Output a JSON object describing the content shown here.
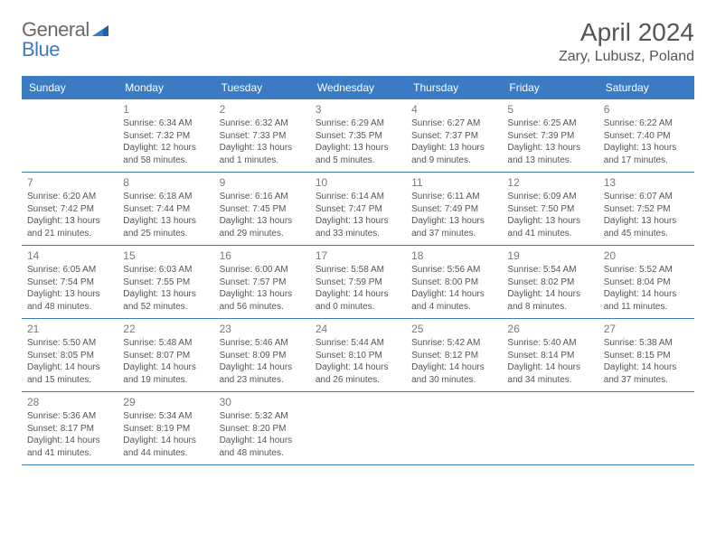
{
  "logo": {
    "general": "General",
    "blue": "Blue"
  },
  "title": "April 2024",
  "location": "Zary, Lubusz, Poland",
  "colors": {
    "header_bg": "#3a7bc4",
    "row_divider": "#3a7bc4",
    "text": "#555555",
    "daynum": "#7a7a7a",
    "logo_gray": "#6b6b6b",
    "logo_blue": "#3a7bc4"
  },
  "day_names": [
    "Sunday",
    "Monday",
    "Tuesday",
    "Wednesday",
    "Thursday",
    "Friday",
    "Saturday"
  ],
  "weeks": [
    [
      {
        "num": "",
        "sunrise": "",
        "sunset": "",
        "daylight": ""
      },
      {
        "num": "1",
        "sunrise": "Sunrise: 6:34 AM",
        "sunset": "Sunset: 7:32 PM",
        "daylight": "Daylight: 12 hours and 58 minutes."
      },
      {
        "num": "2",
        "sunrise": "Sunrise: 6:32 AM",
        "sunset": "Sunset: 7:33 PM",
        "daylight": "Daylight: 13 hours and 1 minutes."
      },
      {
        "num": "3",
        "sunrise": "Sunrise: 6:29 AM",
        "sunset": "Sunset: 7:35 PM",
        "daylight": "Daylight: 13 hours and 5 minutes."
      },
      {
        "num": "4",
        "sunrise": "Sunrise: 6:27 AM",
        "sunset": "Sunset: 7:37 PM",
        "daylight": "Daylight: 13 hours and 9 minutes."
      },
      {
        "num": "5",
        "sunrise": "Sunrise: 6:25 AM",
        "sunset": "Sunset: 7:39 PM",
        "daylight": "Daylight: 13 hours and 13 minutes."
      },
      {
        "num": "6",
        "sunrise": "Sunrise: 6:22 AM",
        "sunset": "Sunset: 7:40 PM",
        "daylight": "Daylight: 13 hours and 17 minutes."
      }
    ],
    [
      {
        "num": "7",
        "sunrise": "Sunrise: 6:20 AM",
        "sunset": "Sunset: 7:42 PM",
        "daylight": "Daylight: 13 hours and 21 minutes."
      },
      {
        "num": "8",
        "sunrise": "Sunrise: 6:18 AM",
        "sunset": "Sunset: 7:44 PM",
        "daylight": "Daylight: 13 hours and 25 minutes."
      },
      {
        "num": "9",
        "sunrise": "Sunrise: 6:16 AM",
        "sunset": "Sunset: 7:45 PM",
        "daylight": "Daylight: 13 hours and 29 minutes."
      },
      {
        "num": "10",
        "sunrise": "Sunrise: 6:14 AM",
        "sunset": "Sunset: 7:47 PM",
        "daylight": "Daylight: 13 hours and 33 minutes."
      },
      {
        "num": "11",
        "sunrise": "Sunrise: 6:11 AM",
        "sunset": "Sunset: 7:49 PM",
        "daylight": "Daylight: 13 hours and 37 minutes."
      },
      {
        "num": "12",
        "sunrise": "Sunrise: 6:09 AM",
        "sunset": "Sunset: 7:50 PM",
        "daylight": "Daylight: 13 hours and 41 minutes."
      },
      {
        "num": "13",
        "sunrise": "Sunrise: 6:07 AM",
        "sunset": "Sunset: 7:52 PM",
        "daylight": "Daylight: 13 hours and 45 minutes."
      }
    ],
    [
      {
        "num": "14",
        "sunrise": "Sunrise: 6:05 AM",
        "sunset": "Sunset: 7:54 PM",
        "daylight": "Daylight: 13 hours and 48 minutes."
      },
      {
        "num": "15",
        "sunrise": "Sunrise: 6:03 AM",
        "sunset": "Sunset: 7:55 PM",
        "daylight": "Daylight: 13 hours and 52 minutes."
      },
      {
        "num": "16",
        "sunrise": "Sunrise: 6:00 AM",
        "sunset": "Sunset: 7:57 PM",
        "daylight": "Daylight: 13 hours and 56 minutes."
      },
      {
        "num": "17",
        "sunrise": "Sunrise: 5:58 AM",
        "sunset": "Sunset: 7:59 PM",
        "daylight": "Daylight: 14 hours and 0 minutes."
      },
      {
        "num": "18",
        "sunrise": "Sunrise: 5:56 AM",
        "sunset": "Sunset: 8:00 PM",
        "daylight": "Daylight: 14 hours and 4 minutes."
      },
      {
        "num": "19",
        "sunrise": "Sunrise: 5:54 AM",
        "sunset": "Sunset: 8:02 PM",
        "daylight": "Daylight: 14 hours and 8 minutes."
      },
      {
        "num": "20",
        "sunrise": "Sunrise: 5:52 AM",
        "sunset": "Sunset: 8:04 PM",
        "daylight": "Daylight: 14 hours and 11 minutes."
      }
    ],
    [
      {
        "num": "21",
        "sunrise": "Sunrise: 5:50 AM",
        "sunset": "Sunset: 8:05 PM",
        "daylight": "Daylight: 14 hours and 15 minutes."
      },
      {
        "num": "22",
        "sunrise": "Sunrise: 5:48 AM",
        "sunset": "Sunset: 8:07 PM",
        "daylight": "Daylight: 14 hours and 19 minutes."
      },
      {
        "num": "23",
        "sunrise": "Sunrise: 5:46 AM",
        "sunset": "Sunset: 8:09 PM",
        "daylight": "Daylight: 14 hours and 23 minutes."
      },
      {
        "num": "24",
        "sunrise": "Sunrise: 5:44 AM",
        "sunset": "Sunset: 8:10 PM",
        "daylight": "Daylight: 14 hours and 26 minutes."
      },
      {
        "num": "25",
        "sunrise": "Sunrise: 5:42 AM",
        "sunset": "Sunset: 8:12 PM",
        "daylight": "Daylight: 14 hours and 30 minutes."
      },
      {
        "num": "26",
        "sunrise": "Sunrise: 5:40 AM",
        "sunset": "Sunset: 8:14 PM",
        "daylight": "Daylight: 14 hours and 34 minutes."
      },
      {
        "num": "27",
        "sunrise": "Sunrise: 5:38 AM",
        "sunset": "Sunset: 8:15 PM",
        "daylight": "Daylight: 14 hours and 37 minutes."
      }
    ],
    [
      {
        "num": "28",
        "sunrise": "Sunrise: 5:36 AM",
        "sunset": "Sunset: 8:17 PM",
        "daylight": "Daylight: 14 hours and 41 minutes."
      },
      {
        "num": "29",
        "sunrise": "Sunrise: 5:34 AM",
        "sunset": "Sunset: 8:19 PM",
        "daylight": "Daylight: 14 hours and 44 minutes."
      },
      {
        "num": "30",
        "sunrise": "Sunrise: 5:32 AM",
        "sunset": "Sunset: 8:20 PM",
        "daylight": "Daylight: 14 hours and 48 minutes."
      },
      {
        "num": "",
        "sunrise": "",
        "sunset": "",
        "daylight": ""
      },
      {
        "num": "",
        "sunrise": "",
        "sunset": "",
        "daylight": ""
      },
      {
        "num": "",
        "sunrise": "",
        "sunset": "",
        "daylight": ""
      },
      {
        "num": "",
        "sunrise": "",
        "sunset": "",
        "daylight": ""
      }
    ]
  ]
}
